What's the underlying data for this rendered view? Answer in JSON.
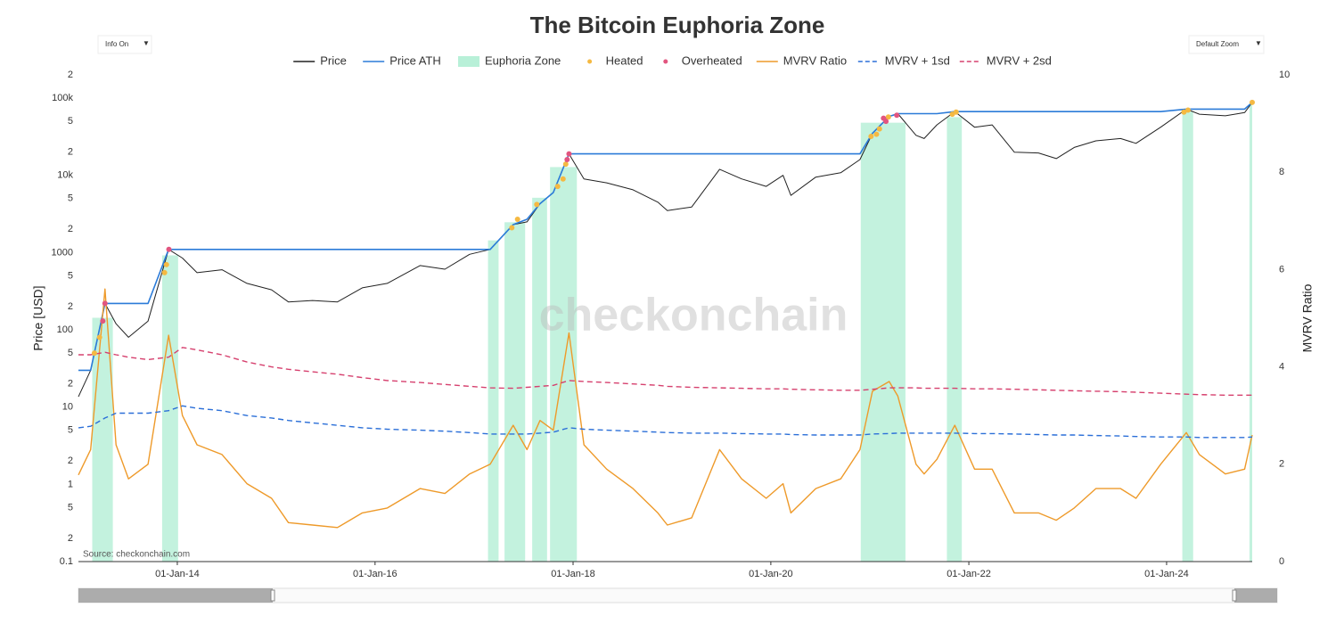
{
  "chart_data": {
    "type": "line",
    "title": "The Bitcoin Euphoria Zone",
    "ylabel": "Price [USD]",
    "y2label": "MVRV Ratio",
    "source": "Source: checkonchain.com",
    "watermark": "checkonchain",
    "controls": [
      "Info On",
      "Default Zoom"
    ],
    "log_y": true,
    "xlim": [
      "2013-01-01",
      "2024-11-12"
    ],
    "xticks": [
      {
        "value": "2014-01-01",
        "label": "01-Jan-14"
      },
      {
        "value": "2016-01-01",
        "label": "01-Jan-16"
      },
      {
        "value": "2018-01-01",
        "label": "01-Jan-18"
      },
      {
        "value": "2020-01-01",
        "label": "01-Jan-20"
      },
      {
        "value": "2022-01-01",
        "label": "01-Jan-22"
      },
      {
        "value": "2024-01-01",
        "label": "01-Jan-24"
      }
    ],
    "ylim": [
      0.1,
      200000
    ],
    "yticks": [
      0.1,
      {
        "value": 0.2,
        "label": "2"
      },
      {
        "value": 0.5,
        "label": "5"
      },
      1,
      2,
      5,
      10,
      {
        "value": 20,
        "label": "2"
      },
      {
        "value": 50,
        "label": "5"
      },
      100,
      {
        "value": 200,
        "label": "2"
      },
      {
        "value": 500,
        "label": "5"
      },
      1000,
      {
        "value": 2000,
        "label": "2"
      },
      {
        "value": 5000,
        "label": "5"
      },
      {
        "value": 10000,
        "label": "10k"
      },
      {
        "value": 20000,
        "label": "2"
      },
      {
        "value": 50000,
        "label": "5"
      },
      {
        "value": 100000,
        "label": "100k"
      },
      {
        "value": 200000,
        "label": "2"
      }
    ],
    "y2lim": [
      0,
      10
    ],
    "y2ticks": [
      0,
      2,
      4,
      6,
      8,
      10
    ],
    "x": [
      "2013-01-01",
      "2013-02-15",
      "2013-04-09",
      "2013-05-20",
      "2013-07-05",
      "2013-09-15",
      "2013-11-30",
      "2014-01-20",
      "2014-03-15",
      "2014-06-15",
      "2014-09-15",
      "2014-12-15",
      "2015-02-15",
      "2015-05-15",
      "2015-08-15",
      "2015-11-15",
      "2016-02-15",
      "2016-06-15",
      "2016-09-15",
      "2016-12-15",
      "2017-03-01",
      "2017-05-25",
      "2017-07-15",
      "2017-09-01",
      "2017-10-20",
      "2017-12-17",
      "2018-02-10",
      "2018-05-05",
      "2018-08-10",
      "2018-11-10",
      "2018-12-15",
      "2019-03-15",
      "2019-06-26",
      "2019-09-15",
      "2019-12-15",
      "2020-02-15",
      "2020-03-15",
      "2020-06-15",
      "2020-09-15",
      "2020-11-25",
      "2021-01-10",
      "2021-03-13",
      "2021-04-14",
      "2021-06-20",
      "2021-07-20",
      "2021-09-05",
      "2021-11-10",
      "2022-01-22",
      "2022-03-28",
      "2022-06-18",
      "2022-09-15",
      "2022-11-20",
      "2023-01-25",
      "2023-04-15",
      "2023-07-15",
      "2023-09-10",
      "2023-12-10",
      "2024-03-14",
      "2024-05-01",
      "2024-08-05",
      "2024-10-15",
      "2024-11-12"
    ],
    "series": [
      {
        "name": "Price",
        "color": "#222222",
        "width": 1,
        "values": [
          13.6,
          30,
          220,
          120,
          80,
          130,
          1100,
          850,
          550,
          600,
          400,
          330,
          230,
          240,
          230,
          350,
          400,
          680,
          610,
          950,
          1100,
          2300,
          2500,
          4300,
          6000,
          19000,
          9000,
          8000,
          6500,
          4500,
          3500,
          3900,
          12000,
          9000,
          7200,
          10000,
          5500,
          9500,
          10800,
          16000,
          35000,
          58000,
          63000,
          33000,
          30000,
          45000,
          67000,
          42000,
          45000,
          20000,
          19500,
          16500,
          23000,
          28000,
          30000,
          26000,
          42000,
          72000,
          62000,
          59000,
          65000,
          88000
        ]
      },
      {
        "name": "Price ATH",
        "color": "#2b7bd8",
        "width": 1.6,
        "values": [
          30,
          30,
          220,
          220,
          220,
          220,
          1100,
          1100,
          1100,
          1100,
          1100,
          1100,
          1100,
          1100,
          1100,
          1100,
          1100,
          1100,
          1100,
          1100,
          1100,
          2300,
          2700,
          4300,
          6000,
          19000,
          19000,
          19000,
          19000,
          19000,
          19000,
          19000,
          19000,
          19000,
          19000,
          19000,
          19000,
          19000,
          19000,
          19000,
          35000,
          58000,
          63000,
          63000,
          63000,
          63000,
          67000,
          67000,
          67000,
          67000,
          67000,
          67000,
          67000,
          67000,
          67000,
          67000,
          67000,
          72000,
          72000,
          72000,
          72000,
          88000
        ]
      },
      {
        "name": "MVRV Ratio",
        "color": "#ee9a2a",
        "width": 1.4,
        "axis": "y2",
        "values": [
          1.78,
          2.3,
          5.6,
          2.4,
          1.7,
          2.0,
          4.65,
          3.0,
          2.4,
          2.2,
          1.6,
          1.3,
          0.8,
          0.75,
          0.7,
          1.0,
          1.1,
          1.5,
          1.4,
          1.8,
          2.0,
          2.8,
          2.3,
          2.9,
          2.7,
          4.7,
          2.4,
          1.9,
          1.5,
          1.0,
          0.75,
          0.9,
          2.3,
          1.7,
          1.3,
          1.6,
          1.0,
          1.5,
          1.7,
          2.3,
          3.5,
          3.7,
          3.4,
          2.0,
          1.8,
          2.1,
          2.8,
          1.9,
          1.9,
          1.0,
          1.0,
          0.85,
          1.1,
          1.5,
          1.5,
          1.3,
          2.0,
          2.65,
          2.2,
          1.8,
          1.9,
          2.6
        ]
      },
      {
        "name": "MVRV + 1sd",
        "color": "#2b6fd8",
        "width": 1.4,
        "dash": true,
        "axis": "y2",
        "values": [
          2.75,
          2.78,
          2.95,
          3.05,
          3.05,
          3.05,
          3.1,
          3.2,
          3.15,
          3.1,
          3.0,
          2.95,
          2.9,
          2.85,
          2.8,
          2.75,
          2.72,
          2.7,
          2.68,
          2.65,
          2.62,
          2.62,
          2.62,
          2.64,
          2.66,
          2.75,
          2.72,
          2.7,
          2.68,
          2.66,
          2.65,
          2.64,
          2.64,
          2.63,
          2.62,
          2.62,
          2.61,
          2.6,
          2.6,
          2.6,
          2.62,
          2.63,
          2.64,
          2.64,
          2.64,
          2.64,
          2.64,
          2.63,
          2.63,
          2.62,
          2.61,
          2.6,
          2.6,
          2.59,
          2.58,
          2.57,
          2.56,
          2.56,
          2.55,
          2.55,
          2.55,
          2.56
        ]
      },
      {
        "name": "MVRV + 2sd",
        "color": "#d6406e",
        "width": 1.4,
        "dash": true,
        "axis": "y2",
        "values": [
          4.25,
          4.25,
          4.3,
          4.25,
          4.2,
          4.15,
          4.2,
          4.4,
          4.35,
          4.25,
          4.1,
          4.0,
          3.95,
          3.9,
          3.85,
          3.78,
          3.72,
          3.68,
          3.64,
          3.6,
          3.57,
          3.56,
          3.58,
          3.6,
          3.62,
          3.72,
          3.7,
          3.68,
          3.65,
          3.62,
          3.6,
          3.58,
          3.57,
          3.56,
          3.55,
          3.55,
          3.54,
          3.53,
          3.52,
          3.52,
          3.54,
          3.57,
          3.57,
          3.57,
          3.56,
          3.56,
          3.56,
          3.55,
          3.55,
          3.54,
          3.53,
          3.52,
          3.51,
          3.5,
          3.49,
          3.48,
          3.46,
          3.44,
          3.43,
          3.42,
          3.42,
          3.42
        ]
      }
    ],
    "points": [
      {
        "name": "Heated",
        "color": "#f5b942",
        "x": [
          "2013-03-01",
          "2013-03-20",
          "2013-11-15",
          "2013-11-22",
          "2017-05-20",
          "2017-06-10",
          "2017-08-20",
          "2017-11-05",
          "2017-11-25",
          "2017-12-05",
          "2021-01-05",
          "2021-01-25",
          "2021-02-05",
          "2021-03-10",
          "2021-11-01",
          "2021-11-15",
          "2024-03-05",
          "2024-03-20",
          "2024-11-12"
        ],
        "values": [
          50,
          80,
          550,
          700,
          2100,
          2700,
          4200,
          7200,
          9000,
          14000,
          32000,
          34000,
          40000,
          57000,
          62000,
          66000,
          66000,
          70000,
          88000
        ]
      },
      {
        "name": "Overheated",
        "color": "#e2557f",
        "x": [
          "2013-04-01",
          "2013-04-09",
          "2013-12-01",
          "2017-12-10",
          "2017-12-17",
          "2021-02-20",
          "2021-03-01",
          "2021-04-10"
        ],
        "values": [
          130,
          220,
          1100,
          16000,
          19000,
          55000,
          50000,
          60000
        ]
      }
    ],
    "zones": {
      "name": "Euphoria Zone",
      "color": "#b8f0d8",
      "ranges": [
        [
          "2013-02-21",
          "2013-05-08"
        ],
        [
          "2013-11-06",
          "2014-01-04"
        ],
        [
          "2017-02-21",
          "2017-04-01"
        ],
        [
          "2017-04-23",
          "2017-07-08"
        ],
        [
          "2017-08-03",
          "2017-09-27"
        ],
        [
          "2017-10-08",
          "2018-01-15"
        ],
        [
          "2020-11-28",
          "2021-05-12"
        ],
        [
          "2021-10-12",
          "2021-12-06"
        ],
        [
          "2024-02-28",
          "2024-04-08"
        ],
        [
          "2024-11-02",
          "2024-11-12"
        ]
      ]
    }
  }
}
